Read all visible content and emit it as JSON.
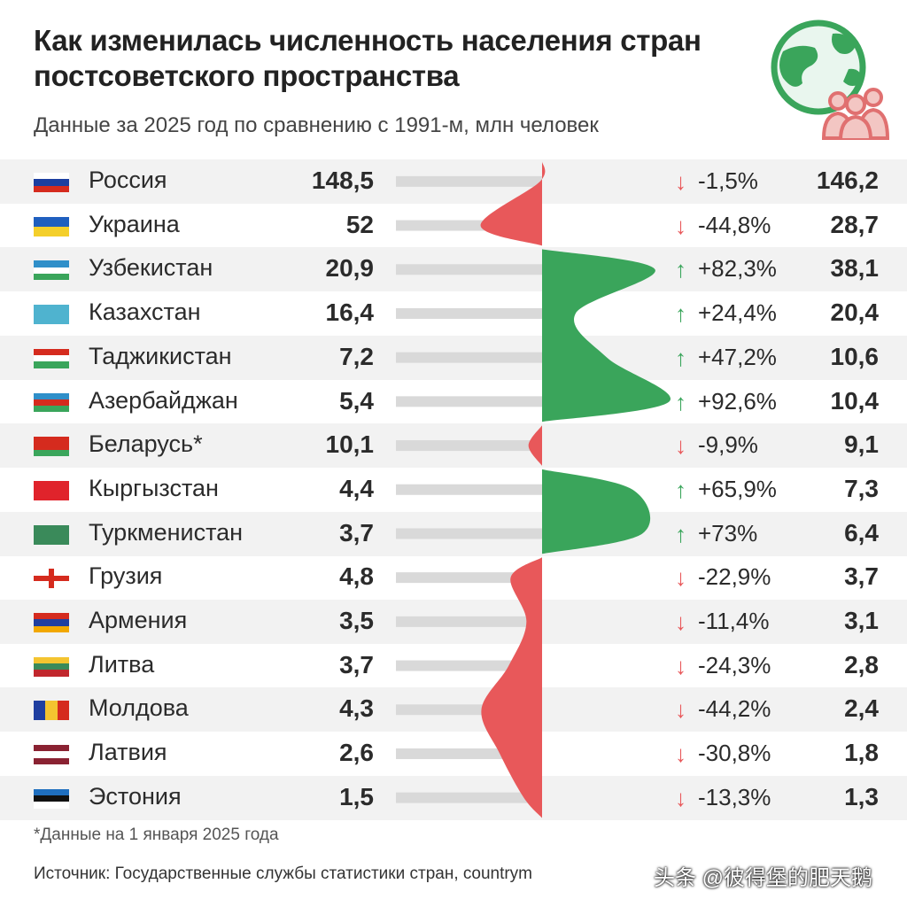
{
  "title": "Как изменилась численность населения стран постсоветского пространства",
  "subtitle": "Данные за 2025 год по сравнению с 1991-м, млн человек",
  "colors": {
    "increase": "#3aa55b",
    "decrease": "#e8585a",
    "track": "#d9d9d9",
    "row_alt": "#f2f2f2"
  },
  "icons": {
    "up": "up-arrow-icon",
    "down": "down-arrow-icon",
    "logo": "globe-people-icon"
  },
  "footnote": "*Данные на 1 января 2025 года",
  "source": "Источник: Государственные службы статистики стран, countrym",
  "watermark": "头条 @彼得堡的肥天鹅",
  "rows": [
    {
      "country": "Россия",
      "v1991": "148,5",
      "pct": "-1,5%",
      "v2025": "146,2",
      "dir": "down"
    },
    {
      "country": "Украина",
      "v1991": "52",
      "pct": "-44,8%",
      "v2025": "28,7",
      "dir": "down"
    },
    {
      "country": "Узбекистан",
      "v1991": "20,9",
      "pct": "+82,3%",
      "v2025": "38,1",
      "dir": "up"
    },
    {
      "country": "Казахстан",
      "v1991": "16,4",
      "pct": "+24,4%",
      "v2025": "20,4",
      "dir": "up"
    },
    {
      "country": "Таджикистан",
      "v1991": "7,2",
      "pct": "+47,2%",
      "v2025": "10,6",
      "dir": "up"
    },
    {
      "country": "Азербайджан",
      "v1991": "5,4",
      "pct": "+92,6%",
      "v2025": "10,4",
      "dir": "up"
    },
    {
      "country": "Беларусь*",
      "v1991": "10,1",
      "pct": "-9,9%",
      "v2025": "9,1",
      "dir": "down"
    },
    {
      "country": "Кыргызстан",
      "v1991": "4,4",
      "pct": "+65,9%",
      "v2025": "7,3",
      "dir": "up"
    },
    {
      "country": "Туркменистан",
      "v1991": "3,7",
      "pct": "+73%",
      "v2025": "6,4",
      "dir": "up"
    },
    {
      "country": "Грузия",
      "v1991": "4,8",
      "pct": "-22,9%",
      "v2025": "3,7",
      "dir": "down"
    },
    {
      "country": "Армения",
      "v1991": "3,5",
      "pct": "-11,4%",
      "v2025": "3,1",
      "dir": "down"
    },
    {
      "country": "Литва",
      "v1991": "3,7",
      "pct": "-24,3%",
      "v2025": "2,8",
      "dir": "down"
    },
    {
      "country": "Молдова",
      "v1991": "4,3",
      "pct": "-44,2%",
      "v2025": "2,4",
      "dir": "down"
    },
    {
      "country": "Латвия",
      "v1991": "2,6",
      "pct": "-30,8%",
      "v2025": "1,8",
      "dir": "down"
    },
    {
      "country": "Эстония",
      "v1991": "1,5",
      "pct": "-13,3%",
      "v2025": "1,3",
      "dir": "down"
    }
  ],
  "chart_data": {
    "type": "area",
    "title": "Как изменилась численность населения стран постсоветского пространства",
    "subtitle": "Данные за 2025 год по сравнению с 1991-м, млн человек",
    "categories": [
      "Россия",
      "Украина",
      "Узбекистан",
      "Казахстан",
      "Таджикистан",
      "Азербайджан",
      "Беларусь*",
      "Кыргызстан",
      "Туркменистан",
      "Грузия",
      "Армения",
      "Литва",
      "Молдова",
      "Латвия",
      "Эстония"
    ],
    "series": [
      {
        "values": [
          148.5,
          52,
          20.9,
          16.4,
          7.2,
          5.4,
          10.1,
          4.4,
          3.7,
          4.8,
          3.5,
          3.7,
          4.3,
          2.6,
          1.5
        ]
      },
      {
        "values": [
          146.2,
          28.7,
          38.1,
          20.4,
          10.6,
          10.4,
          9.1,
          7.3,
          6.4,
          3.7,
          3.1,
          2.8,
          2.4,
          1.8,
          1.3
        ]
      },
      {
        "values": [
          -1.5,
          -44.8,
          82.3,
          24.4,
          47.2,
          92.6,
          -9.9,
          65.9,
          73,
          -22.9,
          -11.4,
          -24.3,
          -44.2,
          -30.8,
          -13.3
        ]
      }
    ]
  }
}
